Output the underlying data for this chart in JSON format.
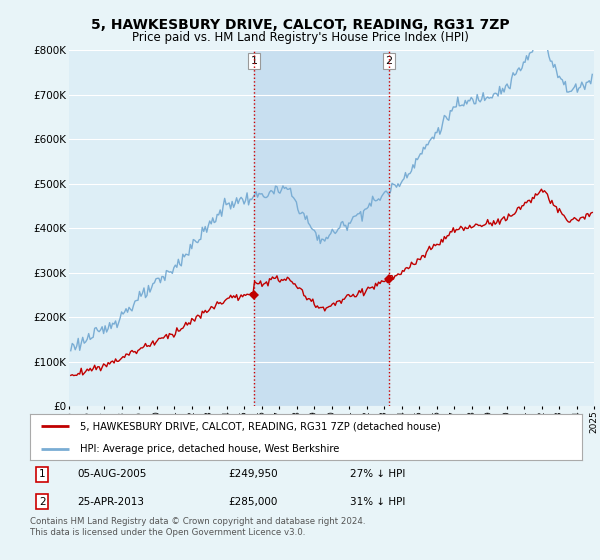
{
  "title": "5, HAWKESBURY DRIVE, CALCOT, READING, RG31 7ZP",
  "subtitle": "Price paid vs. HM Land Registry's House Price Index (HPI)",
  "title_fontsize": 10,
  "subtitle_fontsize": 8.5,
  "ylim": [
    0,
    800000
  ],
  "yticks": [
    0,
    100000,
    200000,
    300000,
    400000,
    500000,
    600000,
    700000,
    800000
  ],
  "ytick_labels": [
    "£0",
    "£100K",
    "£200K",
    "£300K",
    "£400K",
    "£500K",
    "£600K",
    "£700K",
    "£800K"
  ],
  "background_color": "#e8f4f8",
  "plot_bg_color": "#ddeef6",
  "shade_color": "#c8dff0",
  "grid_color": "#ffffff",
  "hpi_color": "#7aadd4",
  "price_color": "#c00000",
  "sale1_price": 249950,
  "sale1_t": 2005.583,
  "sale2_price": 285000,
  "sale2_t": 2013.292,
  "legend_entry1": "5, HAWKESBURY DRIVE, CALCOT, READING, RG31 7ZP (detached house)",
  "legend_entry2": "HPI: Average price, detached house, West Berkshire",
  "footer": "Contains HM Land Registry data © Crown copyright and database right 2024.\nThis data is licensed under the Open Government Licence v3.0.",
  "xstart": 1995.5,
  "xend": 2025.0
}
